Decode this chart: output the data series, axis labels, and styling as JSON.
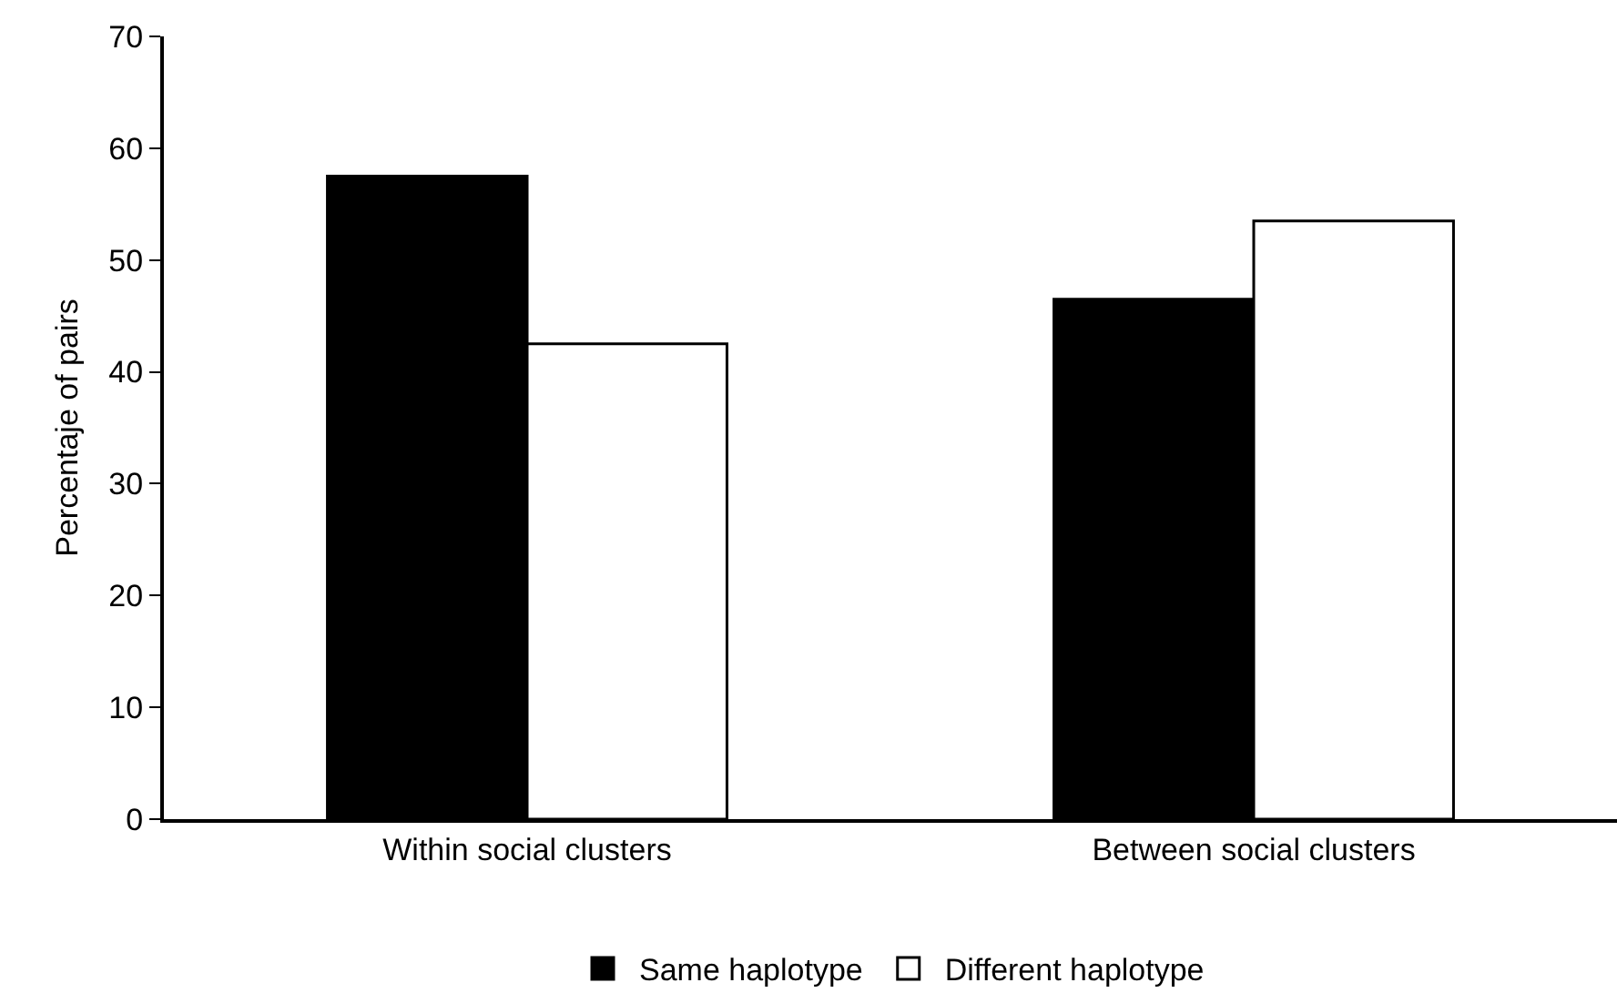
{
  "chart_data": {
    "type": "bar",
    "ylabel": "Percentaje of pairs",
    "categories": [
      "Within social clusters",
      "Between social clusters"
    ],
    "series": [
      {
        "name": "Same haplotype",
        "color": "#000000",
        "values": [
          57.5,
          46.5
        ]
      },
      {
        "name": "Different haplotype",
        "color": "#ffffff",
        "values": [
          42.5,
          53.5
        ]
      }
    ],
    "ylim": [
      0,
      70
    ],
    "yticks": [
      0,
      10,
      20,
      30,
      40,
      50,
      60,
      70
    ],
    "grid": false,
    "legend": "bottom"
  }
}
